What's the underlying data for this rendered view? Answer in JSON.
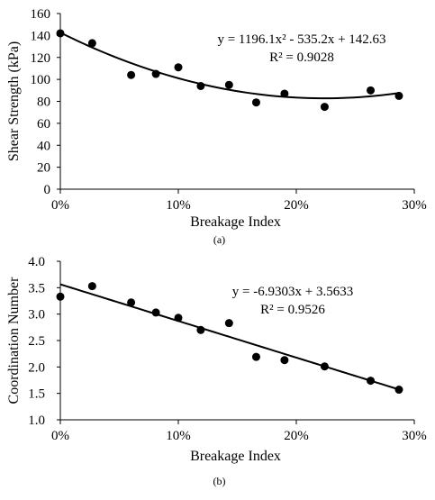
{
  "chart_data": [
    {
      "type": "scatter",
      "panel_label": "(a)",
      "xlabel": "Breakage Index",
      "ylabel": "Shear Strength (kPa)",
      "xlim": [
        0,
        0.3
      ],
      "ylim": [
        0,
        160
      ],
      "xticks": [
        0,
        0.1,
        0.2,
        0.3
      ],
      "xtick_labels": [
        "0%",
        "10%",
        "20%",
        "30%"
      ],
      "yticks": [
        0,
        20,
        40,
        60,
        80,
        100,
        120,
        140,
        160
      ],
      "ytick_labels": [
        "0",
        "20",
        "40",
        "60",
        "80",
        "100",
        "120",
        "140",
        "160"
      ],
      "grid": false,
      "series": [
        {
          "x": [
            0.0,
            0.027,
            0.06,
            0.081,
            0.1,
            0.119,
            0.143,
            0.166,
            0.19,
            0.224,
            0.263,
            0.287
          ],
          "y": [
            142,
            133,
            104,
            105,
            111,
            94,
            95,
            79,
            87,
            75,
            90,
            85
          ]
        }
      ],
      "trendline": {
        "type": "polynomial",
        "coefficients": [
          1196.1,
          -535.2,
          142.63
        ],
        "x_range": [
          0,
          0.287
        ],
        "equation": "y = 1196.1x² - 535.2x + 142.63",
        "r2": "R² = 0.9028"
      }
    },
    {
      "type": "scatter",
      "panel_label": "(b)",
      "xlabel": "Breakage Index",
      "ylabel": "Coordination Number",
      "xlim": [
        0,
        0.3
      ],
      "ylim": [
        1.0,
        4.0
      ],
      "xticks": [
        0,
        0.1,
        0.2,
        0.3
      ],
      "xtick_labels": [
        "0%",
        "10%",
        "20%",
        "30%"
      ],
      "yticks": [
        1.0,
        1.5,
        2.0,
        2.5,
        3.0,
        3.5,
        4.0
      ],
      "ytick_labels": [
        "1.0",
        "1.5",
        "2.0",
        "2.5",
        "3.0",
        "3.5",
        "4.0"
      ],
      "grid": false,
      "series": [
        {
          "x": [
            0.0,
            0.027,
            0.06,
            0.081,
            0.1,
            0.119,
            0.143,
            0.166,
            0.19,
            0.224,
            0.263,
            0.287
          ],
          "y": [
            3.33,
            3.53,
            3.22,
            3.03,
            2.93,
            2.7,
            2.83,
            2.19,
            2.13,
            2.01,
            1.74,
            1.57
          ]
        }
      ],
      "trendline": {
        "type": "linear",
        "coefficients": [
          -6.9303,
          3.5633
        ],
        "x_range": [
          0,
          0.287
        ],
        "equation": "y = -6.9303x + 3.5633",
        "r2": "R² = 0.9526"
      }
    }
  ]
}
